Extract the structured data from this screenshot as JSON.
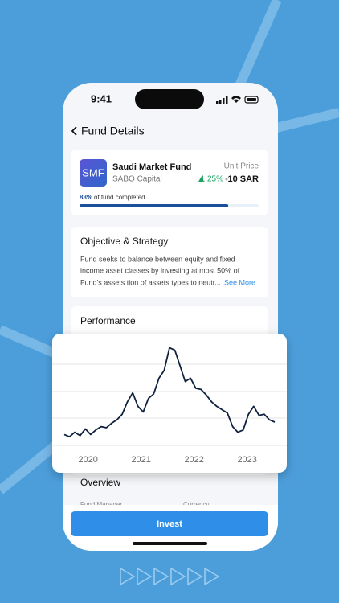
{
  "status_bar": {
    "time": "9:41"
  },
  "header": {
    "title": "Fund Details"
  },
  "fund_card": {
    "logo": "SMF",
    "name": "Saudi Market Fund",
    "manager": "SABO Capital",
    "price_label": "Unit Price",
    "change": "1.25%",
    "price": "10 SAR",
    "progress_value": "83%",
    "progress_text": "of fund completed",
    "progress": 83
  },
  "objective": {
    "title": "Objective & Strategy",
    "lines": [
      "Fund seeks to balance between equity and fixed",
      "income asset classes by investing at most 50% of",
      "Fund's assets tion of assets types to neutr..."
    ],
    "link": "See More"
  },
  "performance": {
    "title": "Performance",
    "chart_data": {
      "type": "line",
      "color": "#10213f",
      "values": [
        14,
        12,
        16,
        13,
        19,
        14,
        18,
        21,
        20,
        24,
        27,
        32,
        43,
        51,
        39,
        34,
        46,
        50,
        64,
        71,
        91,
        89,
        75,
        61,
        64,
        55,
        54,
        49,
        43,
        39,
        36,
        33,
        21,
        16,
        18,
        32,
        39,
        31,
        32,
        27,
        25
      ],
      "ylim": [
        0,
        100
      ],
      "xlim": [
        2019.55,
        2023.52
      ],
      "xticks": [
        2020,
        2021,
        2022,
        2023
      ],
      "grid": true
    }
  },
  "overview": {
    "title": "Overview",
    "fields": [
      "Fund Manager",
      "Currency"
    ]
  },
  "button": {
    "label": "Invest"
  }
}
